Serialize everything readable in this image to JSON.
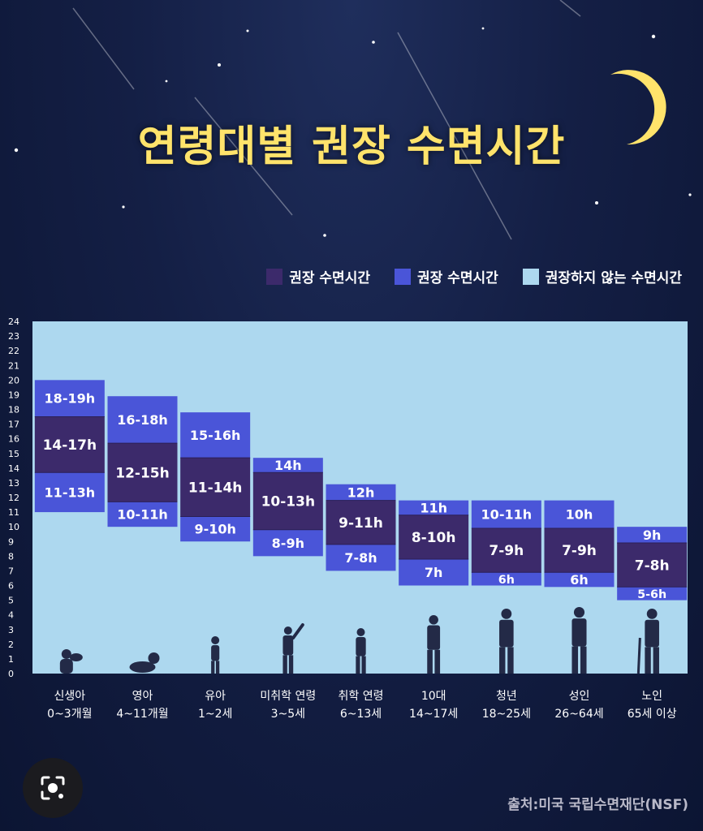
{
  "title": "연령대별 권장 수면시간",
  "legend": [
    {
      "label": "권장 수면시간",
      "color": "#3c2a6b"
    },
    {
      "label": "권장 수면시간",
      "color": "#4a55d8"
    },
    {
      "label": "권장하지 않는 수면시간",
      "color": "#add8ef"
    }
  ],
  "source": "출처:미국 국립수면재단(NSF)",
  "chart_data": {
    "type": "bar",
    "ylim": [
      0,
      24
    ],
    "yticks": [
      0,
      1,
      2,
      3,
      4,
      5,
      6,
      7,
      8,
      9,
      10,
      11,
      12,
      13,
      14,
      15,
      16,
      17,
      18,
      19,
      20,
      21,
      22,
      23,
      24
    ],
    "categories": [
      {
        "name": "신생아",
        "range": "0~3개월"
      },
      {
        "name": "영아",
        "range": "4~11개월"
      },
      {
        "name": "유아",
        "range": "1~2세"
      },
      {
        "name": "미취학 연령",
        "range": "3~5세"
      },
      {
        "name": "취학 연령",
        "range": "6~13세"
      },
      {
        "name": "10대",
        "range": "14~17세"
      },
      {
        "name": "청년",
        "range": "18~25세"
      },
      {
        "name": "성인",
        "range": "26~64세"
      },
      {
        "name": "노인",
        "range": "65세 이상"
      }
    ],
    "groups": [
      {
        "upper": {
          "label": "18-19h",
          "from": 17.5,
          "to": 20
        },
        "recommended": {
          "label": "14-17h",
          "from": 13.7,
          "to": 17.5
        },
        "lower": {
          "label": "11-13h",
          "from": 11,
          "to": 13.7
        }
      },
      {
        "upper": {
          "label": "16-18h",
          "from": 15.7,
          "to": 18.9
        },
        "recommended": {
          "label": "12-15h",
          "from": 11.7,
          "to": 15.7
        },
        "lower": {
          "label": "10-11h",
          "from": 10,
          "to": 11.7
        }
      },
      {
        "upper": {
          "label": "15-16h",
          "from": 14.7,
          "to": 17.8
        },
        "recommended": {
          "label": "11-14h",
          "from": 10.7,
          "to": 14.7
        },
        "lower": {
          "label": "9-10h",
          "from": 9,
          "to": 10.7
        }
      },
      {
        "upper": {
          "label": "14h",
          "from": 13.7,
          "to": 14.7
        },
        "recommended": {
          "label": "10-13h",
          "from": 9.8,
          "to": 13.7
        },
        "lower": {
          "label": "8-9h",
          "from": 8,
          "to": 9.8
        }
      },
      {
        "upper": {
          "label": "12h",
          "from": 11.8,
          "to": 12.9
        },
        "recommended": {
          "label": "9-11h",
          "from": 8.8,
          "to": 11.8
        },
        "lower": {
          "label": "7-8h",
          "from": 7,
          "to": 8.8
        }
      },
      {
        "upper": {
          "label": "11h",
          "from": 10.8,
          "to": 11.8
        },
        "recommended": {
          "label": "8-10h",
          "from": 7.8,
          "to": 10.8
        },
        "lower": {
          "label": "7h",
          "from": 6,
          "to": 7.8
        }
      },
      {
        "upper": {
          "label": "10-11h",
          "from": 9.9,
          "to": 11.8
        },
        "recommended": {
          "label": "7-9h",
          "from": 6.9,
          "to": 9.9
        },
        "lower": {
          "label": "6h",
          "from": 6,
          "to": 6.9
        }
      },
      {
        "upper": {
          "label": "10h",
          "from": 9.9,
          "to": 11.8
        },
        "recommended": {
          "label": "7-9h",
          "from": 6.9,
          "to": 9.9
        },
        "lower": {
          "label": "6h",
          "from": 5.9,
          "to": 6.9
        }
      },
      {
        "upper": {
          "label": "9h",
          "from": 8.9,
          "to": 10
        },
        "recommended": {
          "label": "7-8h",
          "from": 5.9,
          "to": 8.9
        },
        "lower": {
          "label": "5-6h",
          "from": 5,
          "to": 5.9
        }
      }
    ]
  }
}
